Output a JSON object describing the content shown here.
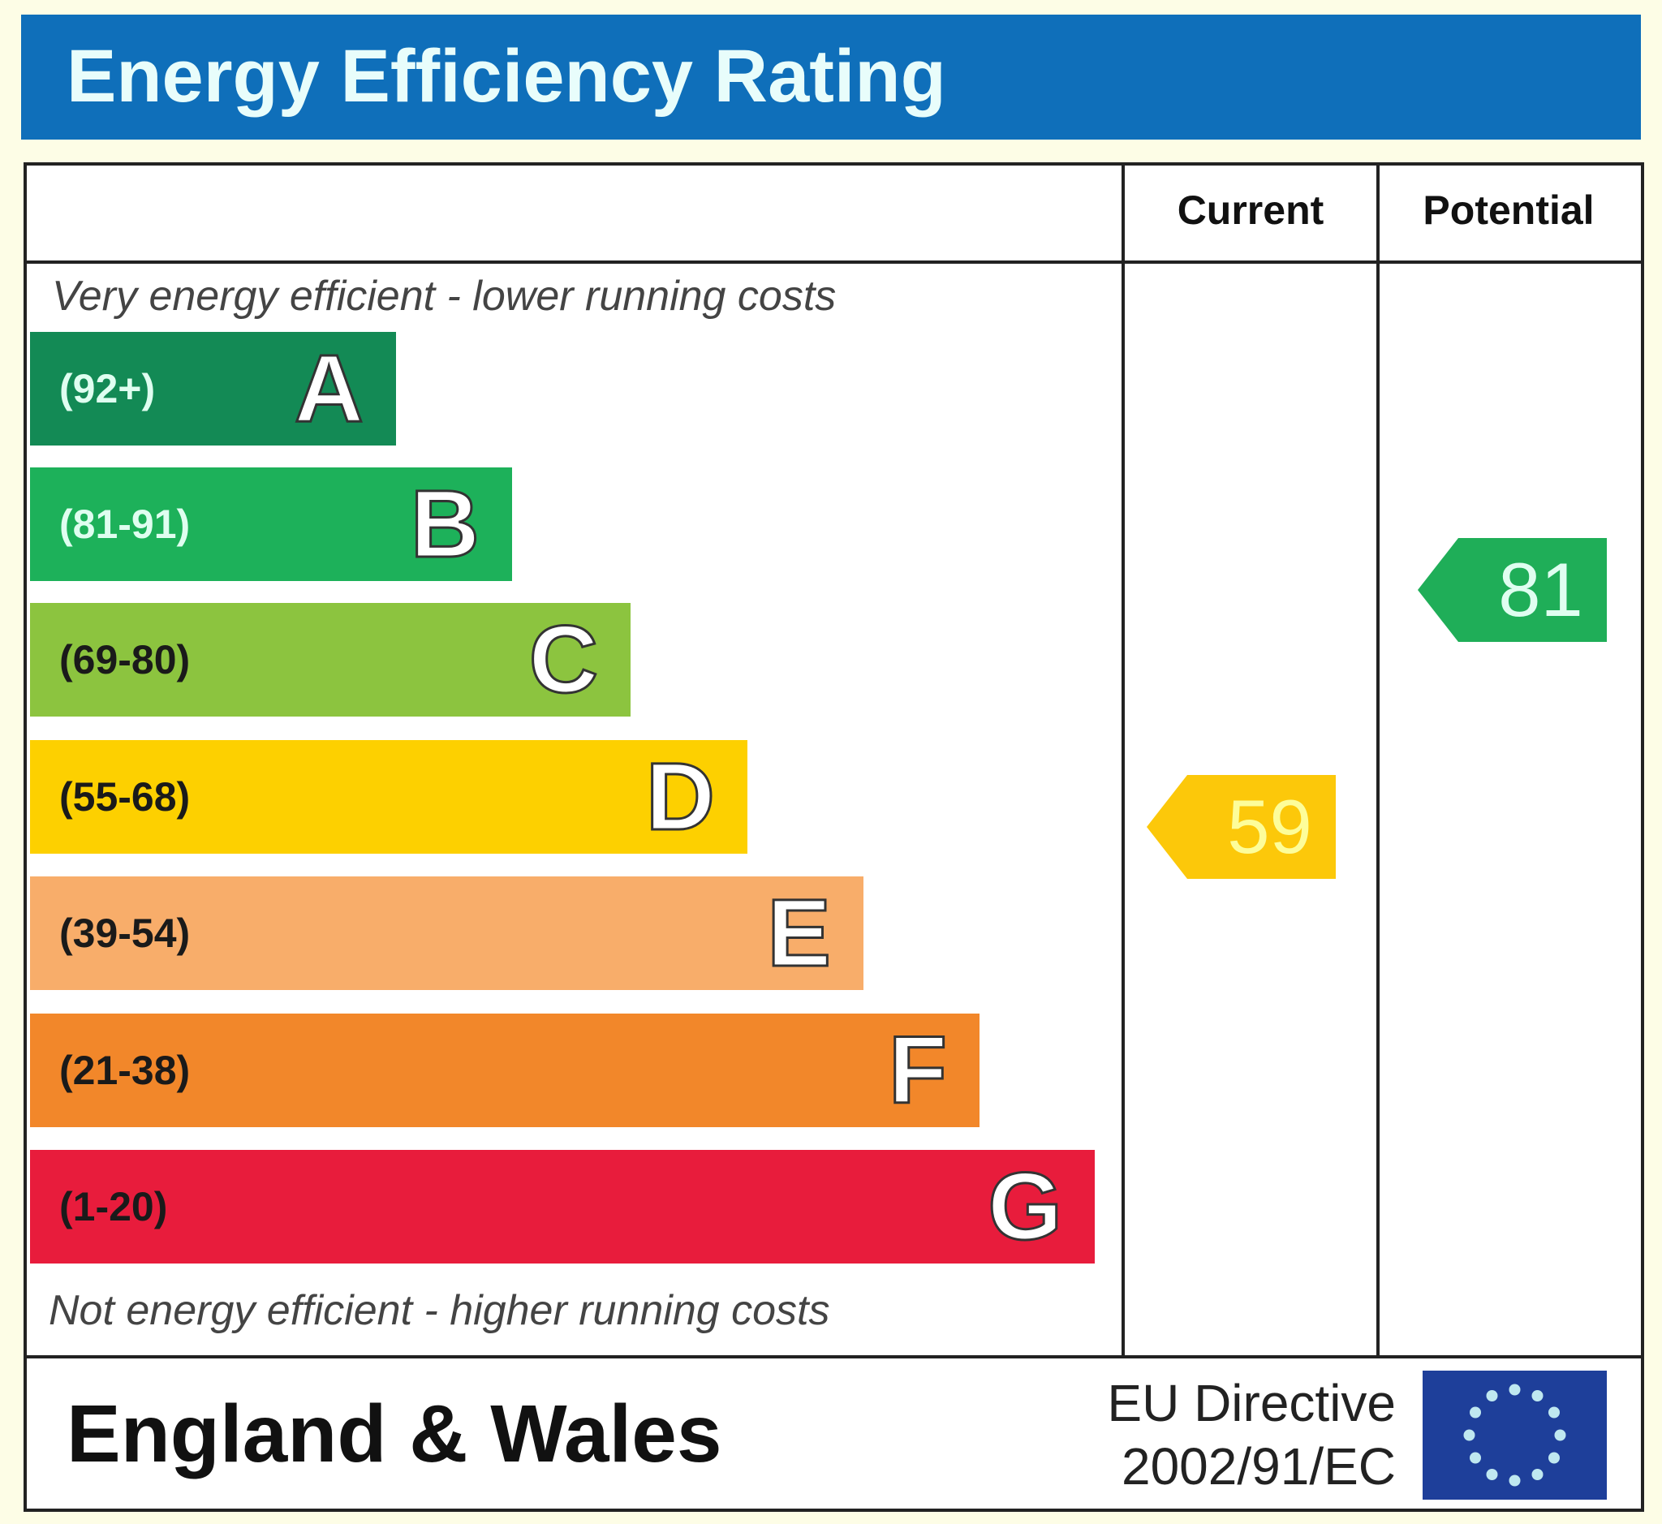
{
  "chart_data": {
    "type": "bar",
    "title": "Energy Efficiency Rating",
    "columns": [
      "Current",
      "Potential"
    ],
    "top_note": "Very energy efficient - lower running costs",
    "bottom_note": "Not energy efficient - higher running costs",
    "bands": [
      {
        "letter": "A",
        "range": "(92+)",
        "color": "#138a55",
        "text_color": "#dffef0"
      },
      {
        "letter": "B",
        "range": "(81-91)",
        "color": "#1db15a",
        "text_color": "#dffef0"
      },
      {
        "letter": "C",
        "range": "(69-80)",
        "color": "#8cc43f",
        "text_color": "#1a1a1a"
      },
      {
        "letter": "D",
        "range": "(55-68)",
        "color": "#fdd000",
        "text_color": "#1a1a1a"
      },
      {
        "letter": "E",
        "range": "(39-54)",
        "color": "#f8ad6a",
        "text_color": "#1a1a1a"
      },
      {
        "letter": "F",
        "range": "(21-38)",
        "color": "#f2872a",
        "text_color": "#1a1a1a"
      },
      {
        "letter": "G",
        "range": "(1-20)",
        "color": "#e81c3c",
        "text_color": "#1a1a1a"
      }
    ],
    "current": {
      "value": "59",
      "band": "D",
      "color": "#fcc80a",
      "text_color": "#fdfd9a"
    },
    "potential": {
      "value": "81",
      "band": "B",
      "color": "#1fae58",
      "text_color": "#dffef0"
    }
  },
  "footer": {
    "region": "England & Wales",
    "directive_line1": "EU Directive",
    "directive_line2": "2002/91/EC",
    "flag_icon": "eu-flag-icon"
  }
}
